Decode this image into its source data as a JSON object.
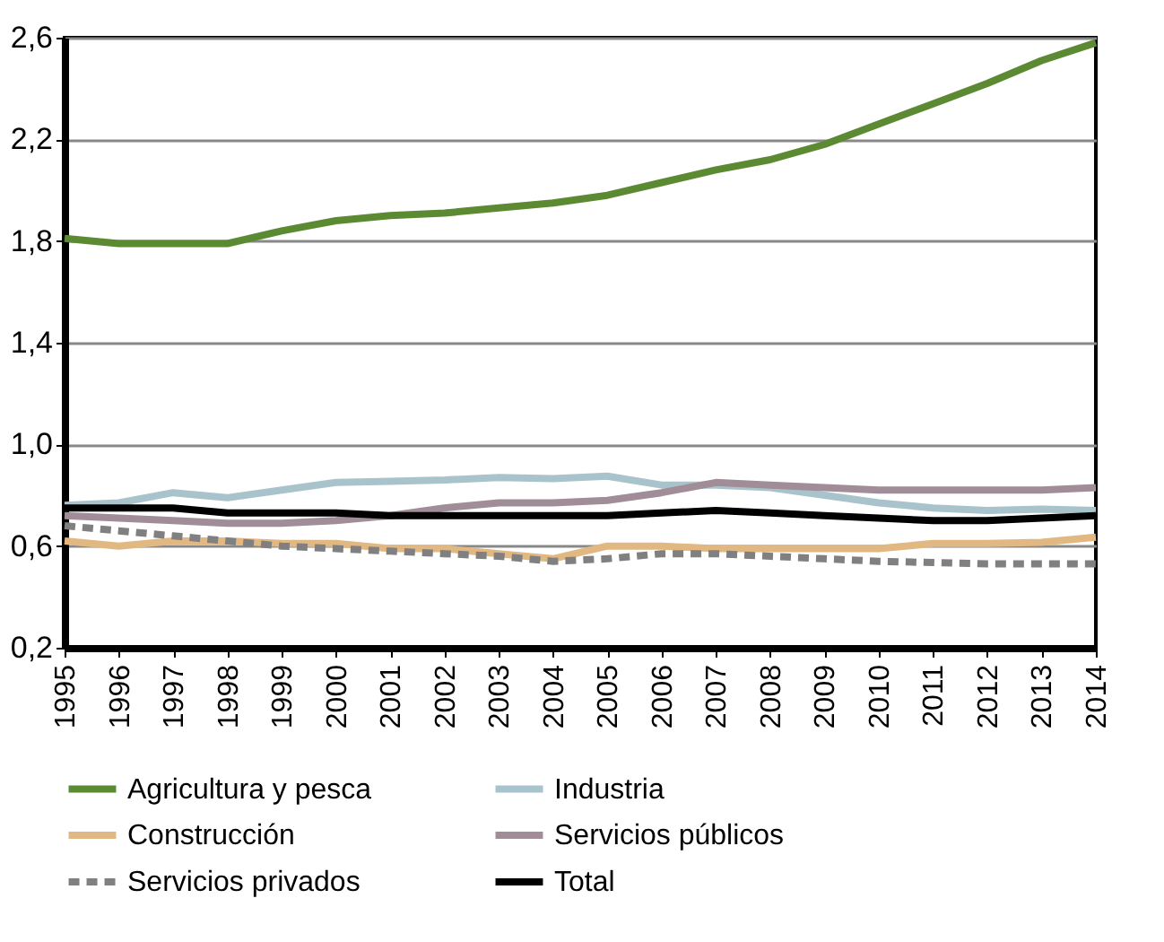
{
  "chart_data": {
    "type": "line",
    "categories": [
      "1995",
      "1996",
      "1997",
      "1998",
      "1999",
      "2000",
      "2001",
      "2002",
      "2003",
      "2004",
      "2005",
      "2006",
      "2007",
      "2008",
      "2009",
      "2010",
      "2011",
      "2012",
      "2013",
      "2014"
    ],
    "series": [
      {
        "name": "Agricultura y pesca",
        "color": "#5b8a33",
        "line_style": "solid",
        "values": [
          1.81,
          1.79,
          1.79,
          1.79,
          1.84,
          1.88,
          1.9,
          1.91,
          1.93,
          1.95,
          1.98,
          2.03,
          2.08,
          2.12,
          2.18,
          2.26,
          2.34,
          2.42,
          2.51,
          2.58
        ]
      },
      {
        "name": "Industria",
        "color": "#a9c3cc",
        "line_style": "solid",
        "values": [
          0.76,
          0.77,
          0.81,
          0.79,
          0.82,
          0.85,
          0.855,
          0.86,
          0.87,
          0.865,
          0.875,
          0.84,
          0.84,
          0.83,
          0.8,
          0.77,
          0.75,
          0.74,
          0.745,
          0.74
        ]
      },
      {
        "name": "Construcción",
        "color": "#e2b882",
        "line_style": "solid",
        "values": [
          0.62,
          0.6,
          0.62,
          0.62,
          0.61,
          0.61,
          0.59,
          0.59,
          0.57,
          0.55,
          0.6,
          0.6,
          0.59,
          0.59,
          0.59,
          0.59,
          0.61,
          0.61,
          0.615,
          0.635
        ]
      },
      {
        "name": "Servicios públicos",
        "color": "#a08d97",
        "line_style": "solid",
        "values": [
          0.72,
          0.71,
          0.7,
          0.69,
          0.69,
          0.7,
          0.72,
          0.75,
          0.77,
          0.77,
          0.78,
          0.81,
          0.85,
          0.84,
          0.83,
          0.82,
          0.82,
          0.82,
          0.82,
          0.83
        ]
      },
      {
        "name": "Servicios privados",
        "color": "#808080",
        "line_style": "dashed",
        "values": [
          0.68,
          0.66,
          0.64,
          0.62,
          0.6,
          0.59,
          0.58,
          0.57,
          0.56,
          0.54,
          0.55,
          0.57,
          0.57,
          0.56,
          0.55,
          0.54,
          0.535,
          0.53,
          0.53,
          0.53
        ]
      },
      {
        "name": "Total",
        "color": "#000000",
        "line_style": "solid",
        "values": [
          0.75,
          0.75,
          0.75,
          0.73,
          0.73,
          0.73,
          0.72,
          0.72,
          0.72,
          0.72,
          0.72,
          0.73,
          0.74,
          0.73,
          0.72,
          0.71,
          0.7,
          0.7,
          0.71,
          0.72
        ]
      }
    ],
    "ylim": [
      0.2,
      2.6
    ],
    "yticks": [
      {
        "value": 0.2,
        "label": "0,2"
      },
      {
        "value": 0.6,
        "label": "0,6"
      },
      {
        "value": 1.0,
        "label": "1,0"
      },
      {
        "value": 1.4,
        "label": "1,4"
      },
      {
        "value": 1.8,
        "label": "1,8"
      },
      {
        "value": 2.2,
        "label": "2,2"
      },
      {
        "value": 2.6,
        "label": "2,6"
      }
    ],
    "grid": "y",
    "legend": "bottom",
    "marker": "none"
  }
}
